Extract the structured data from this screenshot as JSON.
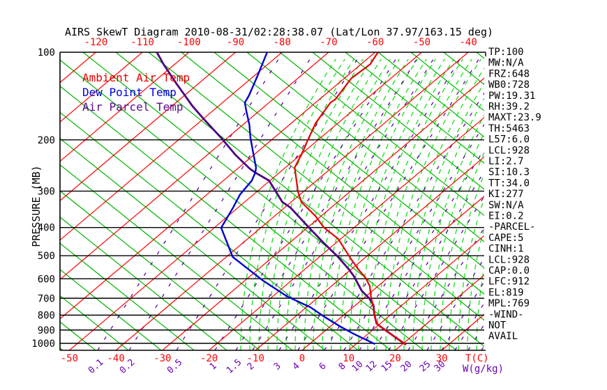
{
  "title": "AIRS SkewT Diagram 2010-08-31/02:28:38.07 (Lat/Lon 37.97/163.15 deg)",
  "axes": {
    "pressure_axis_label": "PRESSURE (MB)",
    "pressure_ticks": [
      100,
      200,
      300,
      400,
      500,
      600,
      700,
      800,
      900,
      1000
    ],
    "top_temp_ticks": [
      -120,
      -110,
      -100,
      -90,
      -80,
      -70,
      -60,
      -50,
      -40
    ],
    "bottom_temp_ticks": [
      -50,
      -40,
      -30,
      -20,
      -10,
      0,
      10,
      20,
      30
    ],
    "temp_axis_label": "T(C)",
    "mixing_ratio_ticks": [
      "0.1",
      "0.2",
      "0.5",
      "1",
      "1.5",
      "2",
      "3",
      "4",
      "6",
      "8",
      "10",
      "12",
      "15",
      "20",
      "25",
      "30"
    ],
    "mixing_ratio_axis_label": "W(g/kg)"
  },
  "legend": [
    {
      "label": "Ambient Air Temp",
      "color": "#e80000"
    },
    {
      "label": "Dew Point Temp",
      "color": "#0000dd"
    },
    {
      "label": "Air Parcel Temp",
      "color": "#5a0a8c"
    }
  ],
  "stats": [
    "TP:100",
    "MW:N/A",
    "FRZ:648",
    "WB0:728",
    "PW:19.31",
    "RH:39.2",
    "MAXT:23.9",
    "TH:5463",
    "L57:6.0",
    "LCL:928",
    "LI:2.7",
    "SI:10.3",
    "TT:34.0",
    "KI:277",
    "SW:N/A",
    "EI:0.2",
    "-PARCEL-",
    "CAPE:5",
    "CINH:1",
    "LCL:928",
    "CAP:0.0",
    "LFC:912",
    "EL:819",
    "MPL:769",
    "-WIND-",
    "NOT",
    "AVAIL"
  ],
  "colors": {
    "isotherm": "#ff0000",
    "dry_adiabat": "#00b400",
    "moist_adiabat": "#00dc00",
    "mixing_ratio": "#5f00a8",
    "pressure_line": "#000000",
    "tick_red": "#ff0000",
    "tick_purple": "#6a00b0",
    "title_text": "#000000",
    "stats_text": "#000000"
  },
  "chart_data": {
    "type": "line",
    "note": "Skew-T log-P sounding; series points are [pressure_mb, temperature_C]",
    "y_axis": "Pressure (MB), log scale 100-1050, inverted",
    "x_axis": "Temperature (C), skewed 45deg, -50..30 at surface",
    "isotherm_step_c": 10,
    "series": [
      {
        "name": "Ambient Air Temp",
        "color": "#e80000",
        "points": [
          [
            100,
            -59.4
          ],
          [
            110,
            -58.0
          ],
          [
            123,
            -58.5
          ],
          [
            145,
            -56.6
          ],
          [
            149,
            -56.8
          ],
          [
            175,
            -54.8
          ],
          [
            196,
            -52.6
          ],
          [
            223,
            -50.0
          ],
          [
            249,
            -48.0
          ],
          [
            302,
            -41.1
          ],
          [
            327,
            -37.8
          ],
          [
            365,
            -31.3
          ],
          [
            400,
            -26.5
          ],
          [
            438,
            -20.5
          ],
          [
            480,
            -16.0
          ],
          [
            515,
            -12.5
          ],
          [
            562,
            -8.0
          ],
          [
            594,
            -4.9
          ],
          [
            637,
            -1.7
          ],
          [
            690,
            1.1
          ],
          [
            748,
            4.2
          ],
          [
            793,
            6.3
          ],
          [
            855,
            9.2
          ],
          [
            881,
            11.2
          ],
          [
            938,
            15.6
          ],
          [
            990,
            19.4
          ],
          [
            1011,
            20.9
          ]
        ]
      },
      {
        "name": "Dew Point Temp",
        "color": "#0000d0",
        "points": [
          [
            100,
            -83.2
          ],
          [
            121,
            -79.2
          ],
          [
            141,
            -76.1
          ],
          [
            149,
            -75.2
          ],
          [
            159,
            -72.8
          ],
          [
            177,
            -68.7
          ],
          [
            196,
            -65.2
          ],
          [
            219,
            -61.1
          ],
          [
            249,
            -56.3
          ],
          [
            259,
            -55.2
          ],
          [
            276,
            -53.9
          ],
          [
            308,
            -52.9
          ],
          [
            343,
            -51.0
          ],
          [
            401,
            -48.5
          ],
          [
            505,
            -38.6
          ],
          [
            608,
            -26.2
          ],
          [
            690,
            -16.9
          ],
          [
            752,
            -9.1
          ],
          [
            812,
            -3.6
          ],
          [
            877,
            2.3
          ],
          [
            929,
            7.0
          ],
          [
            1006,
            14.1
          ]
        ]
      },
      {
        "name": "Air Parcel Temp",
        "color": "#4c0082",
        "points": [
          [
            100,
            -106.9
          ],
          [
            110,
            -102.4
          ],
          [
            128,
            -94.8
          ],
          [
            141,
            -89.8
          ],
          [
            153,
            -85.6
          ],
          [
            168,
            -80.4
          ],
          [
            184,
            -75.2
          ],
          [
            197,
            -71.3
          ],
          [
            225,
            -64.0
          ],
          [
            251,
            -57.4
          ],
          [
            259,
            -55.2
          ],
          [
            276,
            -50.2
          ],
          [
            327,
            -41.9
          ],
          [
            342,
            -38.7
          ],
          [
            401,
            -29.6
          ],
          [
            450,
            -22.9
          ],
          [
            504,
            -16.1
          ],
          [
            557,
            -10.5
          ],
          [
            588,
            -7.7
          ],
          [
            660,
            -2.3
          ],
          [
            700,
            1.2
          ],
          [
            740,
            3.9
          ],
          [
            793,
            6.3
          ],
          [
            855,
            9.2
          ],
          [
            881,
            11.2
          ],
          [
            938,
            15.6
          ],
          [
            990,
            19.4
          ],
          [
            1011,
            20.9
          ]
        ]
      }
    ]
  }
}
